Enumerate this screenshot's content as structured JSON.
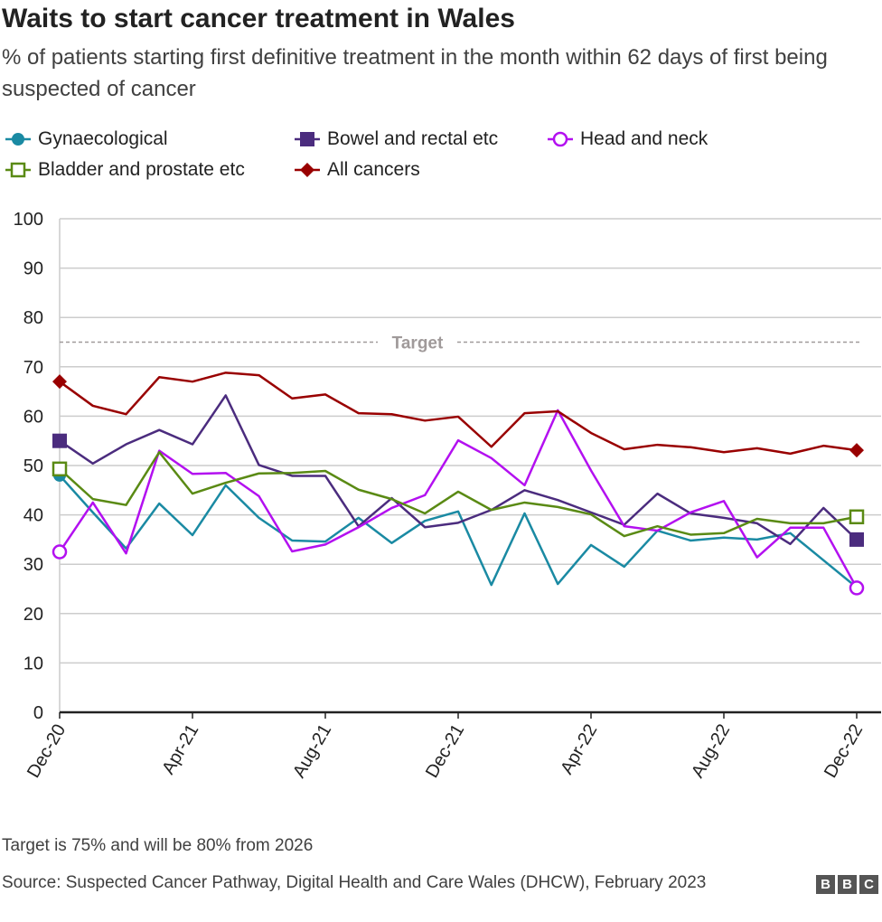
{
  "chart_data": {
    "type": "line",
    "title": "Waits to start cancer treatment in Wales",
    "subtitle": "% of patients starting first definitive treatment in the month within 62 days of first being suspected of cancer",
    "x": [
      "Dec-20",
      "Jan-21",
      "Feb-21",
      "Mar-21",
      "Apr-21",
      "May-21",
      "Jun-21",
      "Jul-21",
      "Aug-21",
      "Sep-21",
      "Oct-21",
      "Nov-21",
      "Dec-21",
      "Jan-22",
      "Feb-22",
      "Mar-22",
      "Apr-22",
      "May-22",
      "Jun-22",
      "Jul-22",
      "Aug-22",
      "Sep-22",
      "Oct-22",
      "Nov-22",
      "Dec-22"
    ],
    "x_tick_labels": [
      "Dec-20",
      "Apr-21",
      "Aug-21",
      "Dec-21",
      "Apr-22",
      "Aug-22",
      "Dec-22"
    ],
    "ylim": [
      0,
      100
    ],
    "y_ticks": [
      0,
      10,
      20,
      30,
      40,
      50,
      60,
      70,
      80,
      90,
      100
    ],
    "grid": true,
    "legend_position": "top",
    "target": {
      "value": 75,
      "label": "Target",
      "color": "#a09a9a"
    },
    "series": [
      {
        "name": "Gynaecological",
        "color": "#1a8aa3",
        "marker": "filled-circle",
        "values": [
          48,
          40.5,
          33.2,
          42.3,
          35.9,
          46,
          39.4,
          34.8,
          34.6,
          39.4,
          34.3,
          38.8,
          40.7,
          25.8,
          40.3,
          26,
          33.9,
          29.5,
          36.8,
          34.8,
          35.4,
          35,
          36.3,
          30.8,
          25.3
        ]
      },
      {
        "name": "Bowel and rectal etc",
        "color": "#4b2c7e",
        "marker": "filled-square",
        "values": [
          55,
          50.4,
          54.3,
          57.2,
          54.3,
          64.2,
          50.1,
          47.9,
          47.9,
          37.7,
          43.4,
          37.5,
          38.4,
          41,
          45,
          43,
          40.5,
          38,
          44.3,
          40.3,
          39.4,
          38.3,
          34.1,
          41.4,
          35
        ]
      },
      {
        "name": "Head and neck",
        "color": "#b310f0",
        "marker": "open-circle",
        "values": [
          32.5,
          42.5,
          32.2,
          53,
          48.3,
          48.5,
          43.8,
          32.6,
          34,
          37.5,
          41.4,
          44,
          55.1,
          51.5,
          46,
          61.2,
          49,
          37.7,
          36.8,
          40.5,
          42.8,
          31.4,
          37.4,
          37.4,
          25.2
        ]
      },
      {
        "name": "Bladder and prostate etc",
        "color": "#5a8a14",
        "marker": "open-square",
        "values": [
          49.3,
          43.2,
          42,
          52.7,
          44.3,
          46.5,
          48.4,
          48.5,
          48.9,
          45.1,
          43.2,
          40.3,
          44.7,
          41,
          42.5,
          41.6,
          40.1,
          35.7,
          37.7,
          36,
          36.3,
          39.2,
          38.3,
          38.3,
          39.6
        ]
      },
      {
        "name": "All cancers",
        "color": "#990000",
        "marker": "diamond",
        "values": [
          67,
          62.1,
          60.4,
          67.9,
          67,
          68.8,
          68.3,
          63.6,
          64.4,
          60.6,
          60.4,
          59.1,
          59.9,
          53.8,
          60.6,
          61,
          56.6,
          53.3,
          54.2,
          53.7,
          52.7,
          53.5,
          52.4,
          54,
          53.1
        ]
      }
    ]
  },
  "footer": {
    "note": "Target is 75% and will be 80% from 2026",
    "source": "Source: Suspected Cancer Pathway, Digital Health and Care Wales (DHCW), February 2023",
    "logo": [
      "B",
      "B",
      "C"
    ]
  }
}
